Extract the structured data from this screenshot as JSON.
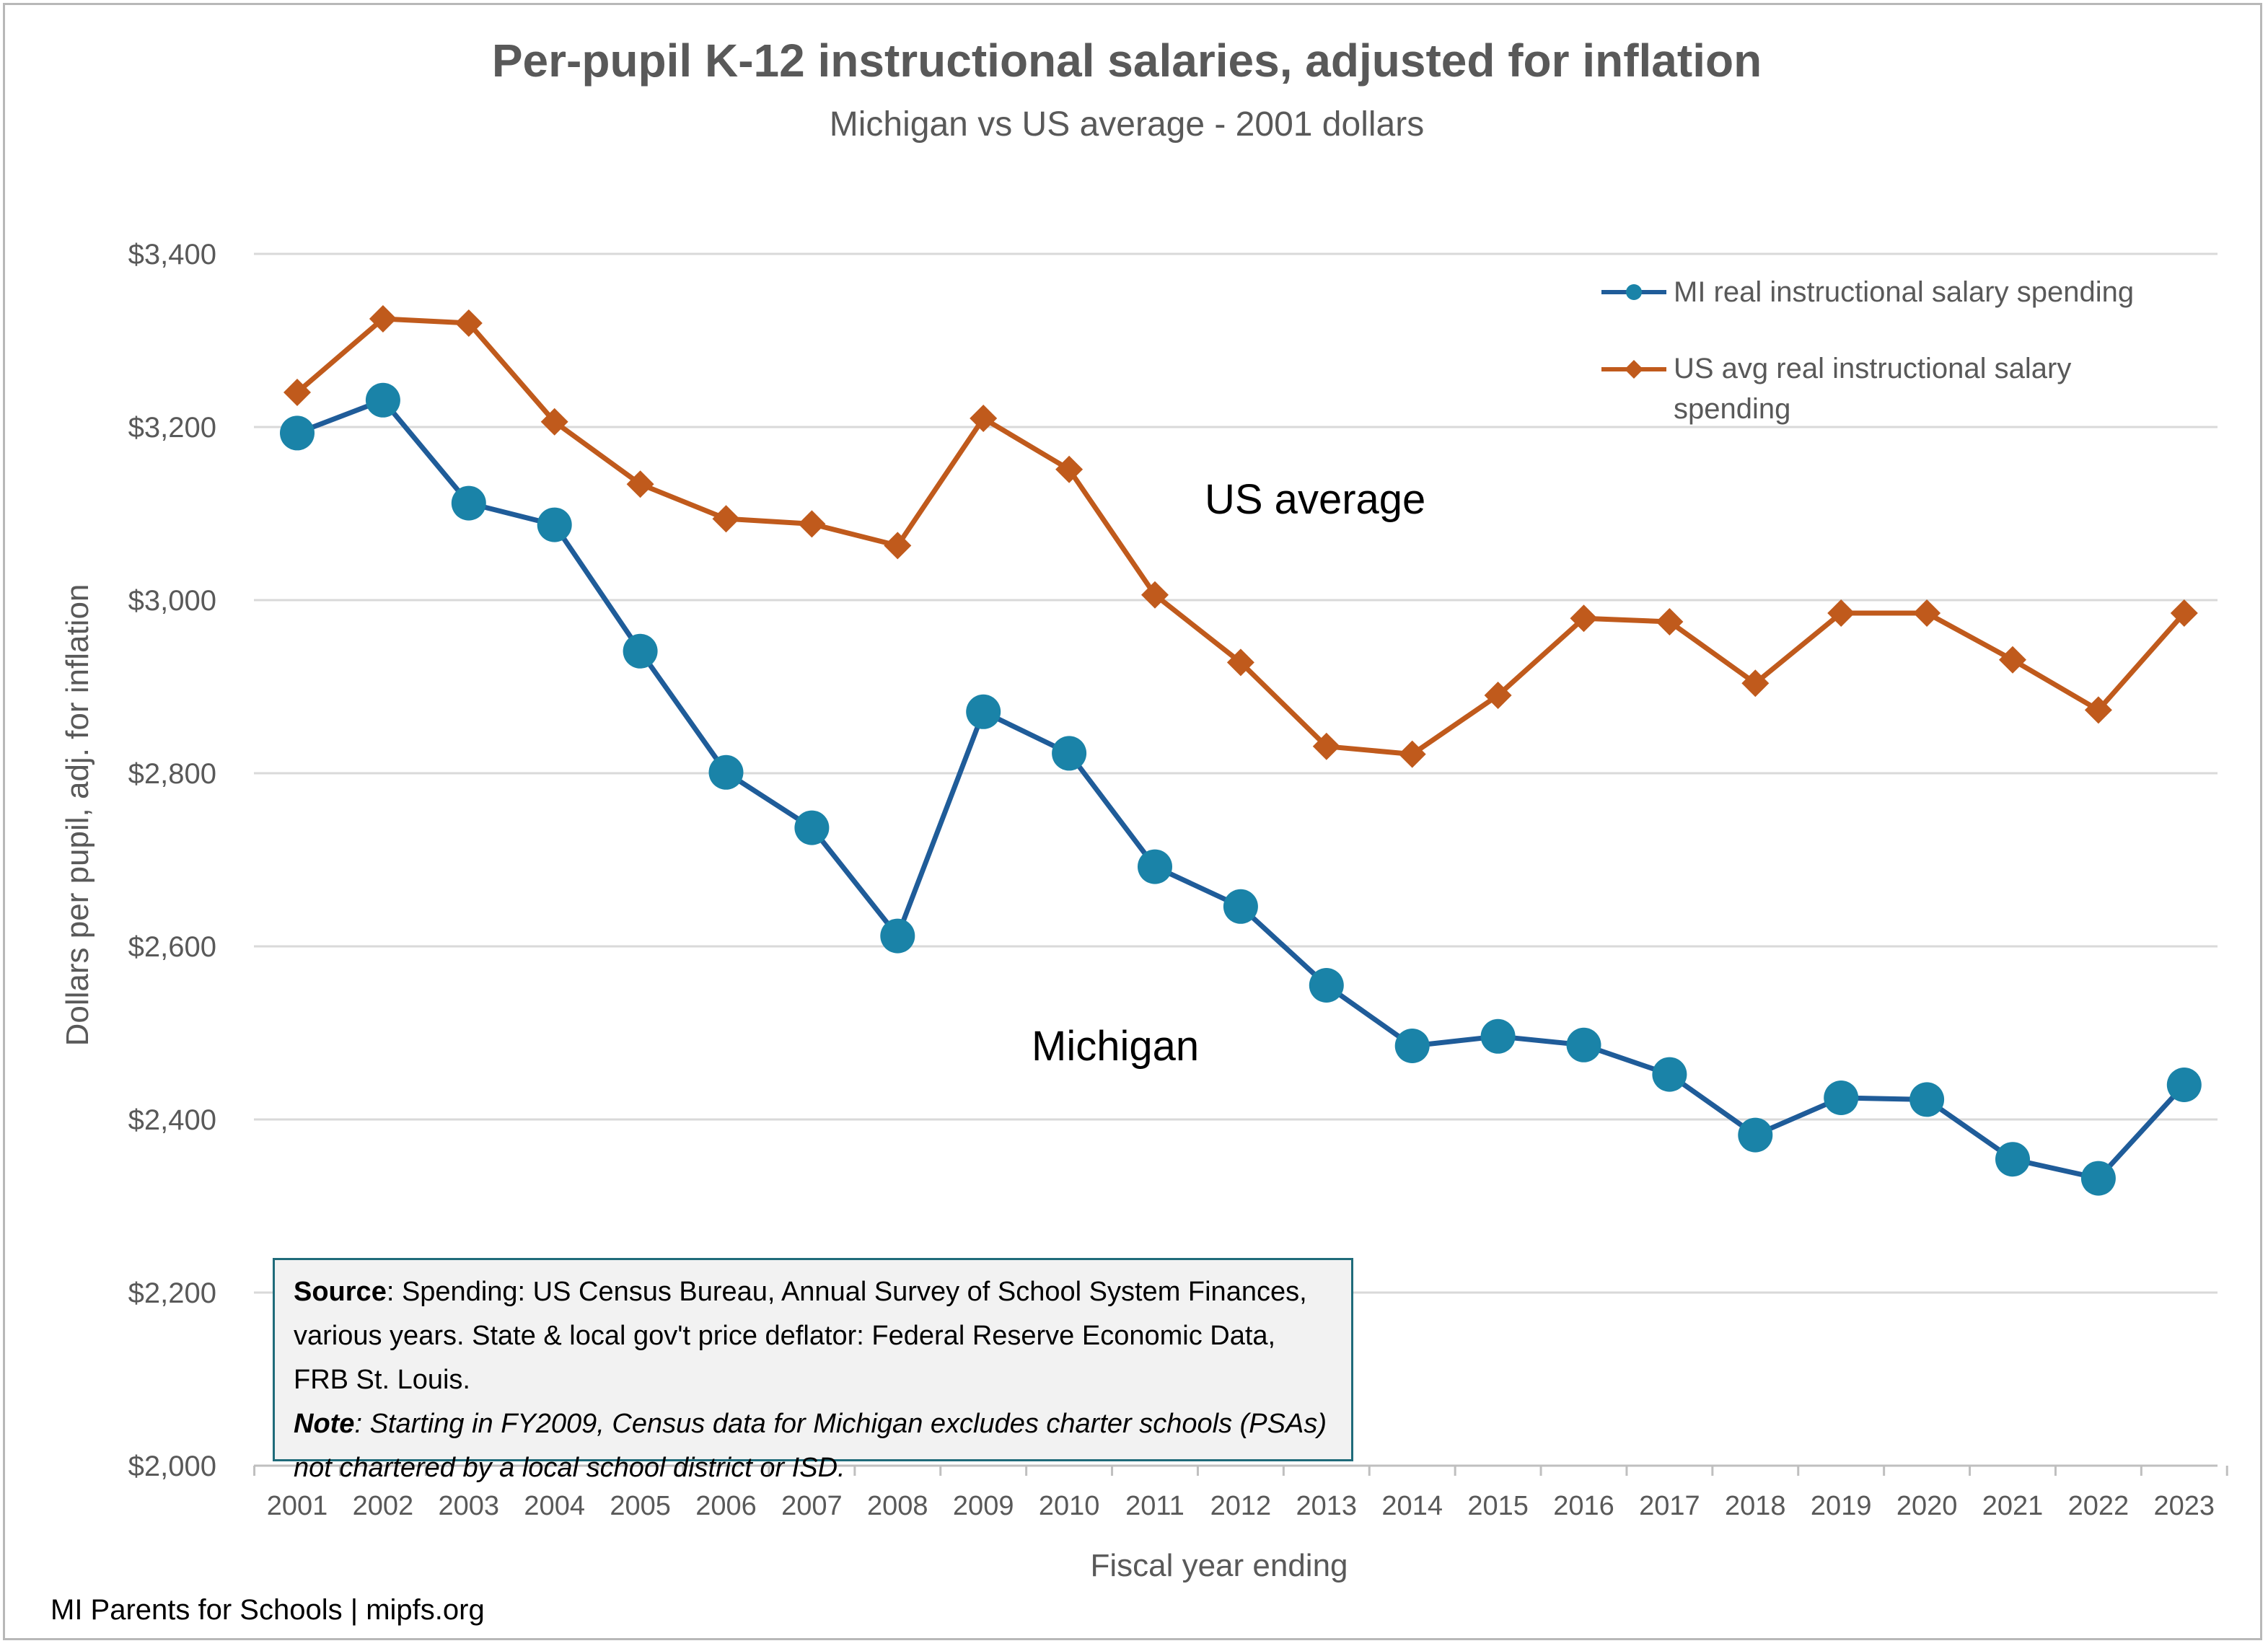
{
  "colors": {
    "mi": "#1f5c99",
    "mi_marker": "#1a83a8",
    "us": "#c05a1c",
    "grid": "#d9d9d9",
    "text": "#595959"
  },
  "chart_data": {
    "type": "line",
    "title": "Per-pupil K-12 instructional salaries, adjusted for inflation",
    "subtitle": "Michigan vs US average - 2001 dollars",
    "xlabel": "Fiscal year ending",
    "ylabel": "Dollars per pupil, adj. for inflation",
    "ylim": [
      2000,
      3400
    ],
    "yticks": [
      2000,
      2200,
      2400,
      2600,
      2800,
      3000,
      3200,
      3400
    ],
    "ytick_labels": [
      "$2,000",
      "$2,200",
      "$2,400",
      "$2,600",
      "$2,800",
      "$3,000",
      "$3,200",
      "$3,400"
    ],
    "categories": [
      "2001",
      "2002",
      "2003",
      "2004",
      "2005",
      "2006",
      "2007",
      "2008",
      "2009",
      "2010",
      "2011",
      "2012",
      "2013",
      "2014",
      "2015",
      "2016",
      "2017",
      "2018",
      "2019",
      "2020",
      "2021",
      "2022",
      "2023"
    ],
    "series": [
      {
        "name": "MI real instructional salary spending",
        "marker": "circle",
        "values": [
          3193,
          3231,
          3112,
          3087,
          2941,
          2801,
          2737,
          2612,
          2871,
          2823,
          2692,
          2646,
          2555,
          2485,
          2496,
          2486,
          2452,
          2382,
          2425,
          2423,
          2354,
          2332,
          2440
        ]
      },
      {
        "name": "US avg real instructional salary spending",
        "marker": "diamond",
        "values": [
          3240,
          3325,
          3320,
          3206,
          3134,
          3094,
          3088,
          3063,
          3210,
          3151,
          3006,
          2928,
          2831,
          2822,
          2890,
          2979,
          2975,
          2904,
          2985,
          2985,
          2931,
          2873,
          2985
        ]
      }
    ],
    "annotations": [
      {
        "text": "US average",
        "series": "US"
      },
      {
        "text": "Michigan",
        "series": "MI"
      }
    ],
    "legend_position": "top-right",
    "grid": true
  },
  "legend": {
    "mi_label": "MI real instructional salary spending",
    "us_label_line1": "US avg real instructional salary",
    "us_label_line2": "spending"
  },
  "source_box": {
    "source_label": "Source",
    "source_text": ": Spending: US Census Bureau, Annual Survey of School System Finances, various years. State & local gov't price deflator: Federal Reserve Economic Data, FRB St. Louis.",
    "note_label": "Note",
    "note_text": ": Starting in FY2009, Census data for Michigan excludes charter schools (PSAs) not chartered by a local school district or ISD."
  },
  "footer": "MI Parents for Schools | mipfs.org"
}
